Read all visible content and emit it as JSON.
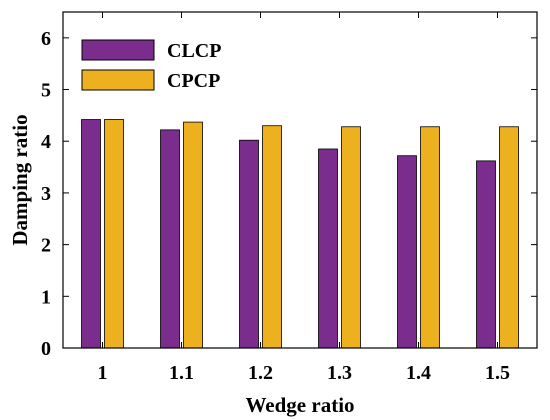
{
  "chart_data": {
    "type": "bar",
    "categories": [
      "1",
      "1.1",
      "1.2",
      "1.3",
      "1.4",
      "1.5"
    ],
    "series": [
      {
        "name": "CLCP",
        "color": "#7B2D8E",
        "values": [
          4.42,
          4.22,
          4.02,
          3.85,
          3.72,
          3.62
        ]
      },
      {
        "name": "CPCP",
        "color": "#EDB120",
        "values": [
          4.42,
          4.37,
          4.3,
          4.28,
          4.28,
          4.28
        ]
      }
    ],
    "title": "",
    "xlabel": "Wedge ratio",
    "ylabel": "Damping ratio",
    "ylim": [
      0,
      6.5
    ],
    "yticks": [
      "0",
      "1",
      "2",
      "3",
      "4",
      "5",
      "6"
    ],
    "grid": false,
    "legend_position": "top-left"
  }
}
